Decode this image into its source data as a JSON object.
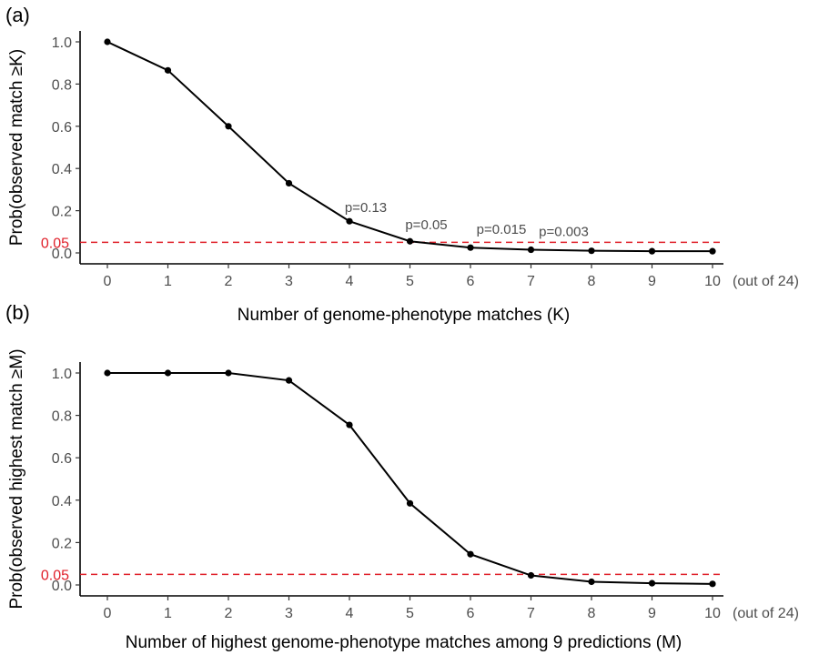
{
  "colors": {
    "line": "#000000",
    "reference": "#e0202a",
    "tick_text": "#4d4d4d"
  },
  "chart_data": [
    {
      "type": "line",
      "panel_label": "(a)",
      "xlabel": "Number of genome-phenotype matches (K)",
      "ylabel": "Prob(observed match ≥K)",
      "x_suffix": "(out of 24)",
      "x": [
        0,
        1,
        2,
        3,
        4,
        5,
        6,
        7,
        8,
        9,
        10
      ],
      "xticks": [
        "0",
        "1",
        "2",
        "3",
        "4",
        "5",
        "6",
        "7",
        "8",
        "9",
        "10"
      ],
      "values": [
        1.0,
        0.865,
        0.6,
        0.33,
        0.15,
        0.055,
        0.025,
        0.015,
        0.01,
        0.008,
        0.008
      ],
      "xlim": [
        0,
        10
      ],
      "ylim": [
        0,
        1
      ],
      "yticks": [
        "0.0",
        "0.2",
        "0.4",
        "0.6",
        "0.8",
        "1.0"
      ],
      "ytick_values": [
        0,
        0.2,
        0.4,
        0.6,
        0.8,
        1.0
      ],
      "reference_line": {
        "value": 0.05,
        "label": "0.05"
      },
      "annotations": [
        {
          "x": 4,
          "y": 0.15,
          "text": "p=0.13"
        },
        {
          "x": 5,
          "y": 0.055,
          "text": "p=0.05"
        },
        {
          "x": 6,
          "y": 0.025,
          "text": "p=0.015"
        },
        {
          "x": 7,
          "y": 0.015,
          "text": "p=0.003"
        }
      ]
    },
    {
      "type": "line",
      "panel_label": "(b)",
      "xlabel": "Number of highest genome-phenotype matches among 9 predictions (M)",
      "ylabel": "Prob(observed highest match ≥M)",
      "x_suffix": "(out of 24)",
      "x": [
        0,
        1,
        2,
        3,
        4,
        5,
        6,
        7,
        8,
        9,
        10
      ],
      "xticks": [
        "0",
        "1",
        "2",
        "3",
        "4",
        "5",
        "6",
        "7",
        "8",
        "9",
        "10"
      ],
      "values": [
        1.0,
        1.0,
        1.0,
        0.965,
        0.755,
        0.385,
        0.145,
        0.045,
        0.015,
        0.008,
        0.005
      ],
      "xlim": [
        0,
        10
      ],
      "ylim": [
        0,
        1
      ],
      "yticks": [
        "0.0",
        "0.2",
        "0.4",
        "0.6",
        "0.8",
        "1.0"
      ],
      "ytick_values": [
        0,
        0.2,
        0.4,
        0.6,
        0.8,
        1.0
      ],
      "reference_line": {
        "value": 0.05,
        "label": "0.05"
      },
      "annotations": []
    }
  ]
}
